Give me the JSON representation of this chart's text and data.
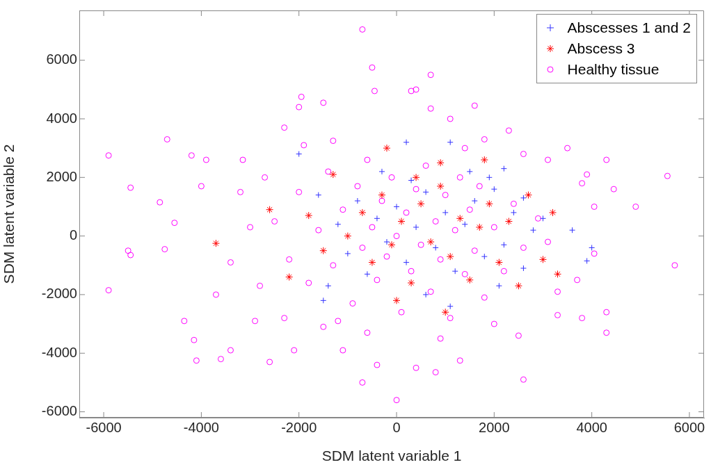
{
  "chart_data": {
    "type": "scatter",
    "xlabel": "SDM latent variable 1",
    "ylabel": "SDM latent variable 2",
    "xlim": [
      -6500,
      6300
    ],
    "ylim": [
      -6200,
      7700
    ],
    "xticks": [
      -6000,
      -4000,
      -2000,
      0,
      2000,
      4000,
      6000
    ],
    "yticks": [
      -6000,
      -4000,
      -2000,
      0,
      2000,
      4000,
      6000
    ],
    "grid": false,
    "legend": "top right",
    "series": [
      {
        "name": "Abscesses 1 and 2",
        "color": "#3333ff",
        "marker": "cross",
        "x": [
          3600,
          4000,
          3900,
          1100,
          -2000,
          200,
          3000,
          2600,
          2200,
          -1500,
          -1200,
          -1000,
          -800,
          -600,
          -400,
          -200,
          0,
          200,
          400,
          600,
          800,
          1000,
          1200,
          1400,
          1600,
          1800,
          2000,
          2200,
          2400,
          2600,
          2800,
          -1600,
          -1400,
          600,
          1500,
          1900,
          2100,
          -300,
          300,
          1100
        ],
        "values": [
          200,
          -400,
          -850,
          3200,
          2800,
          3200,
          600,
          1300,
          2300,
          -2200,
          400,
          -600,
          1200,
          -1300,
          600,
          -200,
          1000,
          -900,
          300,
          1500,
          -400,
          800,
          -1200,
          400,
          1200,
          -700,
          1600,
          -300,
          800,
          -1100,
          200,
          1400,
          -1700,
          -2000,
          2200,
          2000,
          -1700,
          2200,
          1900,
          -2400
        ]
      },
      {
        "name": "Abscess 3",
        "color": "#ff0000",
        "x": [
          -3700,
          -2600,
          3200,
          3000,
          3300,
          1800,
          900,
          -1300,
          -200,
          -1000,
          -700,
          -500,
          -300,
          -100,
          100,
          300,
          500,
          700,
          900,
          1100,
          1300,
          1500,
          1700,
          1900,
          2100,
          2300,
          2500,
          -1500,
          -1800,
          -2200,
          0,
          400,
          1000,
          2700
        ],
        "values": [
          -250,
          900,
          800,
          -800,
          -1300,
          2600,
          2500,
          2100,
          3000,
          0,
          800,
          -900,
          1400,
          -300,
          500,
          -1600,
          1100,
          -200,
          1700,
          -700,
          600,
          -1500,
          300,
          1100,
          -900,
          500,
          -1700,
          -500,
          700,
          -1400,
          -2200,
          2000,
          -2600,
          1400
        ]
      },
      {
        "name": "Healthy tissue",
        "color": "#ff00ff",
        "marker": "circle",
        "x": [
          -5900,
          -5900,
          -5450,
          -5500,
          -5450,
          -4850,
          -4700,
          -4750,
          -4550,
          -4200,
          -4100,
          -4150,
          -4000,
          -3900,
          -4350,
          -3600,
          -3400,
          -3150,
          -2900,
          -2600,
          -2300,
          -2100,
          -2000,
          -1950,
          -1500,
          -1300,
          -700,
          -500,
          -450,
          300,
          400,
          700,
          700,
          1100,
          1600,
          1800,
          2300,
          2600,
          3100,
          3500,
          3900,
          4300,
          4450,
          4900,
          5550,
          5700,
          4300,
          4300,
          3800,
          3300,
          2500,
          2600,
          1300,
          800,
          400,
          0,
          -700,
          -400,
          -1100,
          -1500,
          4050,
          3800,
          3700,
          4050,
          3300,
          -2500,
          -2200,
          -2000,
          -1800,
          -1600,
          -1400,
          -1300,
          -1100,
          -900,
          -800,
          -700,
          -600,
          -500,
          -400,
          -300,
          -200,
          -100,
          0,
          100,
          200,
          300,
          400,
          500,
          600,
          700,
          800,
          900,
          1000,
          1100,
          1200,
          1300,
          1400,
          1500,
          1600,
          1700,
          1800,
          2000,
          2200,
          2400,
          2600,
          -2800,
          -3000,
          -3200,
          -2700,
          -3400,
          2900,
          3100,
          -1900,
          1400,
          -600,
          900,
          -2300,
          2000,
          -3700,
          -1200
        ],
        "values": [
          2750,
          -1850,
          1650,
          -500,
          -650,
          1150,
          3300,
          -450,
          450,
          2750,
          -4250,
          -3550,
          1700,
          2600,
          -2900,
          -4200,
          -3900,
          2600,
          -2900,
          -4300,
          3700,
          -3900,
          4400,
          4750,
          4550,
          3250,
          7050,
          5750,
          4950,
          4950,
          5000,
          5500,
          4350,
          4000,
          4450,
          3300,
          3600,
          2800,
          2600,
          3000,
          2100,
          2600,
          1600,
          1000,
          2050,
          -1000,
          -2600,
          -3300,
          -2800,
          -2700,
          -3400,
          -4900,
          -4250,
          -4650,
          -4500,
          -5600,
          -5000,
          -4400,
          -3900,
          -3100,
          1000,
          1800,
          -1500,
          -600,
          -1900,
          500,
          -800,
          1500,
          -1600,
          200,
          2200,
          -1000,
          900,
          -2300,
          1700,
          -400,
          2600,
          300,
          -1500,
          1200,
          -700,
          2000,
          0,
          -2600,
          800,
          -1200,
          1600,
          -300,
          2400,
          -1900,
          500,
          -800,
          1400,
          -2800,
          200,
          2000,
          -1300,
          900,
          -500,
          1700,
          -2100,
          300,
          -1200,
          1100,
          -400,
          -1700,
          300,
          1500,
          2000,
          -900,
          600,
          -200,
          3100,
          3000,
          -3300,
          -3500,
          -2800,
          -3000,
          -2000,
          -2900
        ]
      }
    ]
  }
}
